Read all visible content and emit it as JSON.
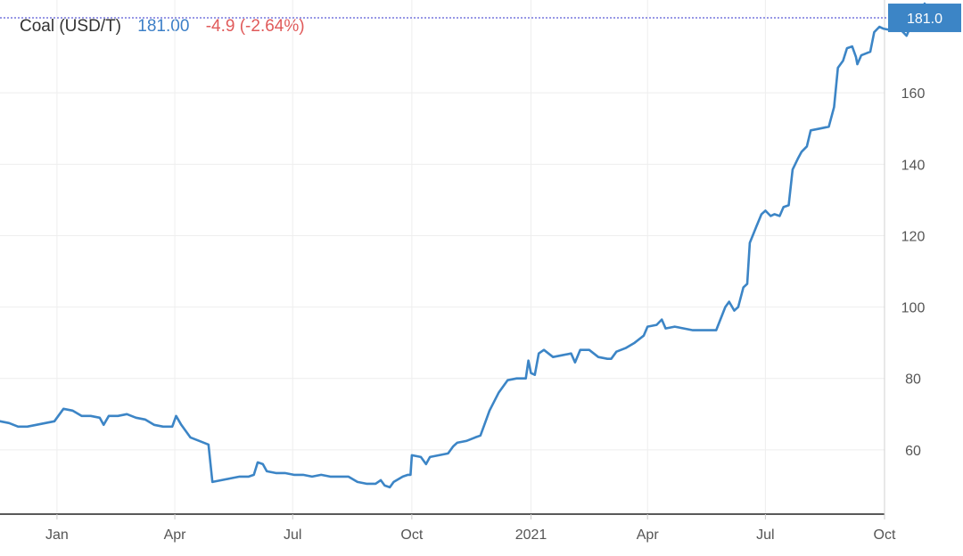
{
  "header": {
    "name": "Coal (USD/T)",
    "price": "181.00",
    "change": "-4.9 (-2.64%)"
  },
  "price_tag": "181.0",
  "colors": {
    "line": "#3c85c6",
    "price_tag_bg": "#3c85c6",
    "change_negative": "#e05a5a",
    "price_text": "#3c7fc7",
    "last_price_line": "#3333cc"
  },
  "chart_data": {
    "type": "line",
    "title": "",
    "xlabel": "",
    "ylabel": "",
    "x_tick_labels": [
      "Jan",
      "Apr",
      "Jul",
      "Oct",
      "2021",
      "Apr",
      "Jul",
      "Oct"
    ],
    "x_tick_dates": [
      "2020-01-01",
      "2020-04-01",
      "2020-07-01",
      "2020-10-01",
      "2021-01-01",
      "2021-04-01",
      "2021-07-01",
      "2021-10-01"
    ],
    "y_ticks": [
      60,
      80,
      100,
      120,
      140,
      160
    ],
    "xlim": [
      "2019-11-18",
      "2021-10-01"
    ],
    "ylim": [
      42,
      186
    ],
    "grid": true,
    "last_value": 181.0,
    "series": [
      {
        "points": [
          [
            "2019-11-18",
            68
          ],
          [
            "2019-11-25",
            67.5
          ],
          [
            "2019-12-02",
            66.5
          ],
          [
            "2019-12-09",
            66.5
          ],
          [
            "2019-12-16",
            67
          ],
          [
            "2019-12-23",
            67.5
          ],
          [
            "2019-12-30",
            68
          ],
          [
            "2020-01-06",
            71.5
          ],
          [
            "2020-01-13",
            71
          ],
          [
            "2020-01-20",
            69.5
          ],
          [
            "2020-01-27",
            69.5
          ],
          [
            "2020-02-03",
            69
          ],
          [
            "2020-02-06",
            67
          ],
          [
            "2020-02-10",
            69.5
          ],
          [
            "2020-02-17",
            69.5
          ],
          [
            "2020-02-24",
            70
          ],
          [
            "2020-03-02",
            69
          ],
          [
            "2020-03-09",
            68.5
          ],
          [
            "2020-03-16",
            67
          ],
          [
            "2020-03-23",
            66.5
          ],
          [
            "2020-03-30",
            66.5
          ],
          [
            "2020-04-02",
            69.5
          ],
          [
            "2020-04-06",
            67
          ],
          [
            "2020-04-13",
            63.5
          ],
          [
            "2020-04-20",
            62.5
          ],
          [
            "2020-04-27",
            61.5
          ],
          [
            "2020-04-30",
            51
          ],
          [
            "2020-05-07",
            51.5
          ],
          [
            "2020-05-14",
            52
          ],
          [
            "2020-05-21",
            52.5
          ],
          [
            "2020-05-28",
            52.5
          ],
          [
            "2020-06-01",
            53
          ],
          [
            "2020-06-04",
            56.5
          ],
          [
            "2020-06-08",
            56
          ],
          [
            "2020-06-11",
            54
          ],
          [
            "2020-06-18",
            53.5
          ],
          [
            "2020-06-25",
            53.5
          ],
          [
            "2020-07-02",
            53
          ],
          [
            "2020-07-09",
            53
          ],
          [
            "2020-07-16",
            52.5
          ],
          [
            "2020-07-23",
            53
          ],
          [
            "2020-07-30",
            52.5
          ],
          [
            "2020-08-06",
            52.5
          ],
          [
            "2020-08-13",
            52.5
          ],
          [
            "2020-08-20",
            51
          ],
          [
            "2020-08-27",
            50.5
          ],
          [
            "2020-09-03",
            50.5
          ],
          [
            "2020-09-07",
            51.5
          ],
          [
            "2020-09-10",
            50
          ],
          [
            "2020-09-14",
            49.5
          ],
          [
            "2020-09-17",
            51
          ],
          [
            "2020-09-24",
            52.5
          ],
          [
            "2020-09-28",
            53
          ],
          [
            "2020-09-30",
            53
          ],
          [
            "2020-10-01",
            58.5
          ],
          [
            "2020-10-08",
            58
          ],
          [
            "2020-10-12",
            56
          ],
          [
            "2020-10-15",
            58
          ],
          [
            "2020-10-22",
            58.5
          ],
          [
            "2020-10-29",
            59
          ],
          [
            "2020-11-02",
            61
          ],
          [
            "2020-11-05",
            62
          ],
          [
            "2020-11-12",
            62.5
          ],
          [
            "2020-11-19",
            63.5
          ],
          [
            "2020-11-23",
            64
          ],
          [
            "2020-11-26",
            67
          ],
          [
            "2020-11-30",
            71
          ],
          [
            "2020-12-07",
            76
          ],
          [
            "2020-12-14",
            79.5
          ],
          [
            "2020-12-21",
            80
          ],
          [
            "2020-12-28",
            80
          ],
          [
            "2020-12-30",
            85
          ],
          [
            "2021-01-01",
            81.5
          ],
          [
            "2021-01-04",
            81
          ],
          [
            "2021-01-07",
            87
          ],
          [
            "2021-01-11",
            88
          ],
          [
            "2021-01-18",
            86
          ],
          [
            "2021-01-25",
            86.5
          ],
          [
            "2021-02-01",
            87
          ],
          [
            "2021-02-04",
            84.5
          ],
          [
            "2021-02-08",
            88
          ],
          [
            "2021-02-15",
            88
          ],
          [
            "2021-02-22",
            86
          ],
          [
            "2021-03-01",
            85.5
          ],
          [
            "2021-03-04",
            85.5
          ],
          [
            "2021-03-08",
            87.5
          ],
          [
            "2021-03-15",
            88.5
          ],
          [
            "2021-03-22",
            90
          ],
          [
            "2021-03-29",
            92
          ],
          [
            "2021-04-01",
            94.5
          ],
          [
            "2021-04-08",
            95
          ],
          [
            "2021-04-12",
            96.5
          ],
          [
            "2021-04-15",
            94
          ],
          [
            "2021-04-22",
            94.5
          ],
          [
            "2021-04-29",
            94
          ],
          [
            "2021-05-06",
            93.5
          ],
          [
            "2021-05-13",
            93.5
          ],
          [
            "2021-05-20",
            93.5
          ],
          [
            "2021-05-24",
            93.5
          ],
          [
            "2021-05-31",
            100
          ],
          [
            "2021-06-03",
            101.5
          ],
          [
            "2021-06-07",
            99
          ],
          [
            "2021-06-10",
            100
          ],
          [
            "2021-06-14",
            105.5
          ],
          [
            "2021-06-17",
            106.5
          ],
          [
            "2021-06-19",
            118
          ],
          [
            "2021-06-24",
            122.5
          ],
          [
            "2021-06-28",
            126
          ],
          [
            "2021-07-01",
            127
          ],
          [
            "2021-07-05",
            125.5
          ],
          [
            "2021-07-08",
            126
          ],
          [
            "2021-07-12",
            125.5
          ],
          [
            "2021-07-15",
            128
          ],
          [
            "2021-07-19",
            128.5
          ],
          [
            "2021-07-22",
            138.5
          ],
          [
            "2021-07-26",
            141.5
          ],
          [
            "2021-07-29",
            143.5
          ],
          [
            "2021-08-02",
            145
          ],
          [
            "2021-08-05",
            149.5
          ],
          [
            "2021-08-12",
            150
          ],
          [
            "2021-08-19",
            150.5
          ],
          [
            "2021-08-23",
            156
          ],
          [
            "2021-08-26",
            167
          ],
          [
            "2021-08-30",
            169
          ],
          [
            "2021-09-02",
            172.5
          ],
          [
            "2021-09-06",
            173
          ],
          [
            "2021-09-09",
            170
          ],
          [
            "2021-09-10",
            168
          ],
          [
            "2021-09-13",
            170.5
          ],
          [
            "2021-09-20",
            171.5
          ],
          [
            "2021-09-23",
            177
          ],
          [
            "2021-09-27",
            178.5
          ],
          [
            "2021-09-30",
            178
          ],
          [
            "2021-10-07",
            177.5
          ],
          [
            "2021-10-14",
            177.5
          ],
          [
            "2021-10-18",
            176
          ],
          [
            "2021-10-21",
            178.5
          ],
          [
            "2021-10-25",
            180
          ],
          [
            "2021-10-28",
            181
          ],
          [
            "2021-11-01",
            185
          ],
          [
            "2021-11-04",
            181
          ]
        ]
      }
    ]
  }
}
